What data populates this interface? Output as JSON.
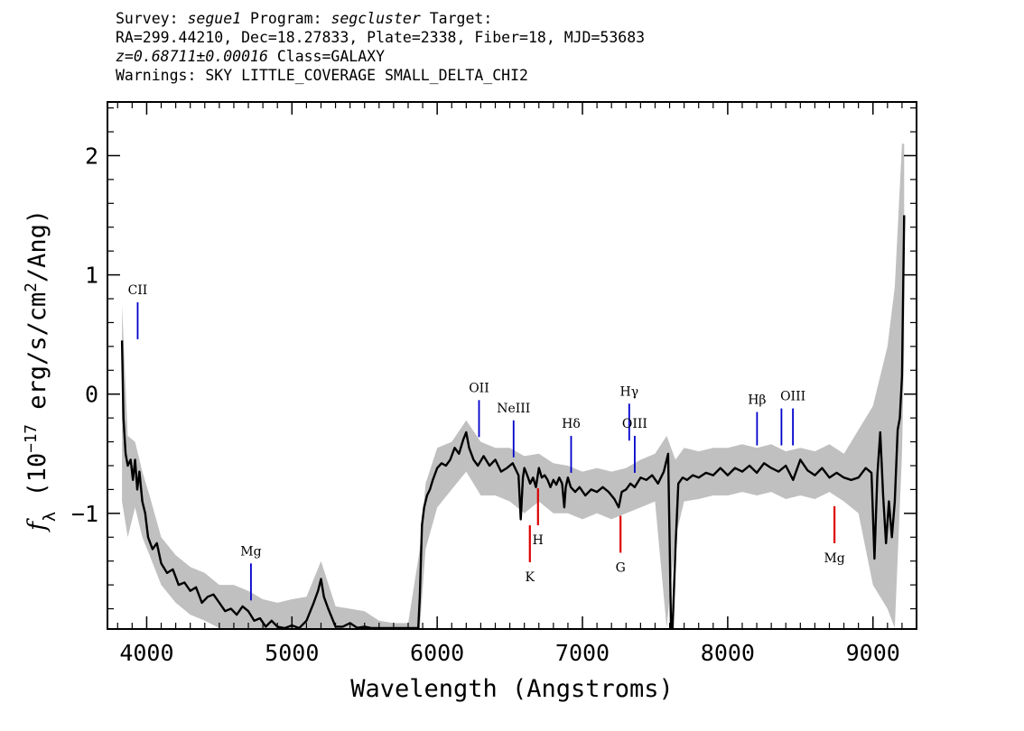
{
  "header": {
    "line1": {
      "survey_label": "Survey: ",
      "survey": "segue1",
      "program_label": " Program: ",
      "program": "segcluster",
      "target_label": " Target:"
    },
    "line2": "RA=299.44210, Dec=18.27833, Plate=2338, Fiber=18, MJD=53683",
    "line3": {
      "redshift": "z=0.68711±0.00016",
      "class": " Class=GALAXY"
    },
    "line4": "Warnings: SKY LITTLE_COVERAGE SMALL_DELTA_CHI2"
  },
  "chart_data": {
    "type": "line",
    "xlabel": "Wavelength (Angstroms)",
    "ylabel_html": "f<tspan baseline-shift='sub' font-size='70%'>λ</tspan> (10<tspan baseline-shift='super' font-size='65%'>−17</tspan> erg/s/cm<tspan baseline-shift='super' font-size='65%'>2</tspan>/Ang)",
    "xlim": [
      3730,
      9300
    ],
    "ylim": [
      -1.97,
      2.45
    ],
    "xticks": [
      4000,
      5000,
      6000,
      7000,
      8000,
      9000
    ],
    "yticks": [
      -1,
      0,
      1,
      2
    ],
    "ytick_labels": [
      "−1",
      "0",
      "1",
      "2"
    ],
    "series": [
      {
        "role": "flux",
        "color": "#000000",
        "x": [
          3830,
          3840,
          3855,
          3870,
          3890,
          3905,
          3920,
          3935,
          3950,
          3970,
          3990,
          4010,
          4040,
          4070,
          4100,
          4140,
          4180,
          4220,
          4260,
          4300,
          4340,
          4380,
          4420,
          4460,
          4500,
          4540,
          4580,
          4620,
          4660,
          4700,
          4740,
          4780,
          4820,
          4860,
          4900,
          4950,
          5000,
          5050,
          5100,
          5150,
          5180,
          5200,
          5220,
          5250,
          5300,
          5350,
          5400,
          5450,
          5500,
          5550,
          5600,
          5650,
          5700,
          5750,
          5800,
          5850,
          5870,
          5880,
          5895,
          5910,
          5930,
          5950,
          5970,
          6000,
          6030,
          6060,
          6090,
          6120,
          6150,
          6180,
          6200,
          6220,
          6250,
          6280,
          6320,
          6360,
          6400,
          6440,
          6480,
          6520,
          6560,
          6575,
          6590,
          6600,
          6620,
          6640,
          6660,
          6680,
          6700,
          6720,
          6740,
          6760,
          6780,
          6800,
          6820,
          6840,
          6860,
          6875,
          6885,
          6900,
          6920,
          6950,
          6980,
          7020,
          7060,
          7100,
          7140,
          7180,
          7220,
          7250,
          7270,
          7300,
          7330,
          7360,
          7400,
          7440,
          7480,
          7520,
          7560,
          7590,
          7600,
          7610,
          7620,
          7640,
          7660,
          7690,
          7720,
          7760,
          7800,
          7850,
          7900,
          7950,
          8000,
          8050,
          8100,
          8150,
          8200,
          8250,
          8300,
          8350,
          8400,
          8450,
          8500,
          8550,
          8600,
          8650,
          8700,
          8750,
          8800,
          8850,
          8900,
          8950,
          8990,
          9010,
          9030,
          9050,
          9070,
          9090,
          9110,
          9130,
          9150,
          9170,
          9185,
          9200,
          9215
        ],
        "y": [
          0.45,
          -0.2,
          -0.5,
          -0.6,
          -0.55,
          -0.72,
          -0.55,
          -0.8,
          -0.65,
          -0.9,
          -1.0,
          -1.2,
          -1.3,
          -1.25,
          -1.42,
          -1.5,
          -1.47,
          -1.6,
          -1.58,
          -1.65,
          -1.62,
          -1.75,
          -1.7,
          -1.68,
          -1.75,
          -1.82,
          -1.8,
          -1.85,
          -1.78,
          -1.82,
          -1.9,
          -1.88,
          -1.95,
          -1.9,
          -1.95,
          -1.98,
          -1.94,
          -1.97,
          -1.9,
          -1.75,
          -1.65,
          -1.55,
          -1.7,
          -1.8,
          -1.95,
          -1.95,
          -1.92,
          -1.96,
          -1.95,
          -1.97,
          -1.97,
          -1.97,
          -1.97,
          -1.97,
          -1.97,
          -1.97,
          -1.97,
          -1.7,
          -1.1,
          -0.95,
          -0.85,
          -0.8,
          -0.72,
          -0.62,
          -0.58,
          -0.6,
          -0.55,
          -0.45,
          -0.5,
          -0.38,
          -0.32,
          -0.45,
          -0.55,
          -0.6,
          -0.52,
          -0.6,
          -0.55,
          -0.65,
          -0.62,
          -0.58,
          -0.68,
          -1.05,
          -0.7,
          -0.62,
          -0.68,
          -0.75,
          -0.7,
          -0.78,
          -0.62,
          -0.7,
          -0.68,
          -0.72,
          -0.78,
          -0.72,
          -0.76,
          -0.7,
          -0.75,
          -0.95,
          -0.78,
          -0.7,
          -0.78,
          -0.82,
          -0.78,
          -0.85,
          -0.8,
          -0.82,
          -0.78,
          -0.82,
          -0.88,
          -0.95,
          -0.82,
          -0.8,
          -0.75,
          -0.78,
          -0.7,
          -0.72,
          -0.68,
          -0.75,
          -0.65,
          -0.5,
          -1.2,
          -1.97,
          -1.97,
          -1.3,
          -0.75,
          -0.7,
          -0.72,
          -0.68,
          -0.7,
          -0.66,
          -0.68,
          -0.62,
          -0.68,
          -0.62,
          -0.65,
          -0.6,
          -0.66,
          -0.58,
          -0.62,
          -0.65,
          -0.6,
          -0.72,
          -0.55,
          -0.64,
          -0.68,
          -0.62,
          -0.7,
          -0.66,
          -0.7,
          -0.72,
          -0.7,
          -0.62,
          -0.66,
          -1.38,
          -0.68,
          -0.32,
          -0.85,
          -1.25,
          -0.9,
          -1.2,
          -0.9,
          -0.3,
          -0.2,
          0.15,
          1.5
        ]
      },
      {
        "role": "noise-upper",
        "color": "#c0c0c0",
        "x": [
          3830,
          3870,
          3920,
          3970,
          4020,
          4100,
          4200,
          4300,
          4400,
          4500,
          4600,
          4700,
          4800,
          4900,
          5000,
          5100,
          5200,
          5300,
          5400,
          5500,
          5600,
          5700,
          5800,
          5880,
          5920,
          6000,
          6100,
          6200,
          6300,
          6400,
          6500,
          6600,
          6700,
          6800,
          6900,
          7000,
          7100,
          7200,
          7300,
          7400,
          7500,
          7580,
          7640,
          7700,
          7800,
          7900,
          8000,
          8100,
          8200,
          8300,
          8400,
          8500,
          8600,
          8700,
          8800,
          8900,
          9000,
          9100,
          9150,
          9200,
          9215
        ],
        "y": [
          0.75,
          -0.35,
          -0.4,
          -0.65,
          -0.85,
          -1.2,
          -1.35,
          -1.45,
          -1.5,
          -1.6,
          -1.6,
          -1.65,
          -1.72,
          -1.75,
          -1.72,
          -1.7,
          -1.4,
          -1.78,
          -1.8,
          -1.82,
          -1.9,
          -1.92,
          -1.92,
          -1.3,
          -0.75,
          -0.45,
          -0.4,
          -0.22,
          -0.4,
          -0.45,
          -0.45,
          -0.52,
          -0.5,
          -0.58,
          -0.6,
          -0.65,
          -0.62,
          -0.65,
          -0.62,
          -0.55,
          -0.5,
          -0.35,
          -0.55,
          -0.45,
          -0.48,
          -0.45,
          -0.45,
          -0.42,
          -0.45,
          -0.42,
          -0.48,
          -0.45,
          -0.48,
          -0.42,
          -0.5,
          -0.3,
          -0.1,
          0.4,
          0.9,
          2.1,
          2.1
        ]
      },
      {
        "role": "noise-lower",
        "color": "#c0c0c0",
        "x": [
          3830,
          3870,
          3920,
          3970,
          4020,
          4100,
          4200,
          4300,
          4400,
          4500,
          4600,
          4700,
          4800,
          4900,
          5000,
          5100,
          5200,
          5300,
          5400,
          5500,
          5600,
          5700,
          5800,
          5880,
          5920,
          6000,
          6100,
          6200,
          6300,
          6400,
          6500,
          6600,
          6700,
          6800,
          6900,
          7000,
          7100,
          7200,
          7300,
          7400,
          7500,
          7580,
          7640,
          7700,
          7800,
          7900,
          8000,
          8100,
          8200,
          8300,
          8400,
          8500,
          8600,
          8700,
          8800,
          8900,
          9000,
          9100,
          9150,
          9200,
          9215
        ],
        "y": [
          -0.9,
          -1.2,
          -0.95,
          -1.2,
          -1.35,
          -1.6,
          -1.75,
          -1.85,
          -1.9,
          -1.97,
          -1.97,
          -1.97,
          -1.97,
          -1.97,
          -1.97,
          -1.97,
          -1.97,
          -1.97,
          -1.97,
          -1.97,
          -1.97,
          -1.97,
          -1.97,
          -1.97,
          -1.3,
          -0.95,
          -0.8,
          -0.65,
          -0.85,
          -0.85,
          -0.9,
          -1.0,
          -0.9,
          -1.0,
          -1.0,
          -1.05,
          -1.0,
          -1.05,
          -1.0,
          -0.95,
          -0.9,
          -1.97,
          -1.2,
          -0.9,
          -0.88,
          -0.85,
          -0.85,
          -0.82,
          -0.85,
          -0.82,
          -0.88,
          -0.85,
          -0.88,
          -0.82,
          -0.9,
          -1.0,
          -1.6,
          -1.8,
          -1.97,
          -0.5,
          0.4
        ]
      }
    ],
    "annotations": [
      {
        "label": "CII",
        "x": 3938,
        "y_top": 0.77,
        "y_bottom": 0.46,
        "color": "#0000cc",
        "text_pos": "above"
      },
      {
        "label": "Mg",
        "x": 4718,
        "y_top": -1.42,
        "y_bottom": -1.73,
        "color": "#0000cc",
        "text_pos": "above"
      },
      {
        "label": "OII",
        "x": 6288,
        "y_top": -0.05,
        "y_bottom": -0.36,
        "color": "#0000cc",
        "text_pos": "above"
      },
      {
        "label": "NeIII",
        "x": 6526,
        "y_top": -0.22,
        "y_bottom": -0.53,
        "color": "#0000cc",
        "text_pos": "above"
      },
      {
        "label": "Hδ",
        "x": 6922,
        "y_top": -0.35,
        "y_bottom": -0.66,
        "color": "#0000cc",
        "text_pos": "above"
      },
      {
        "label": "Hγ",
        "x": 7322,
        "y_top": -0.08,
        "y_bottom": -0.39,
        "color": "#0000cc",
        "text_pos": "above"
      },
      {
        "label": "OIII",
        "x": 7360,
        "y_top": -0.35,
        "y_bottom": -0.66,
        "color": "#0000cc",
        "text_pos": "above"
      },
      {
        "label": "Hβ",
        "x": 8202,
        "y_top": -0.15,
        "y_bottom": -0.43,
        "color": "#0000cc",
        "text_pos": "above"
      },
      {
        "label": "",
        "x": 8370,
        "y_top": -0.12,
        "y_bottom": -0.43,
        "color": "#0000cc",
        "text_pos": "above"
      },
      {
        "label": "OIII",
        "x": 8449,
        "y_top": -0.12,
        "y_bottom": -0.43,
        "color": "#0000cc",
        "text_pos": "above"
      },
      {
        "label": "K",
        "x": 6638,
        "y_top": -1.1,
        "y_bottom": -1.41,
        "color": "#dd0000",
        "text_pos": "below"
      },
      {
        "label": "H",
        "x": 6694,
        "y_top": -0.79,
        "y_bottom": -1.1,
        "color": "#dd0000",
        "text_pos": "below"
      },
      {
        "label": "G",
        "x": 7262,
        "y_top": -1.02,
        "y_bottom": -1.33,
        "color": "#dd0000",
        "text_pos": "below"
      },
      {
        "label": "Mg",
        "x": 8735,
        "y_top": -0.94,
        "y_bottom": -1.25,
        "color": "#dd0000",
        "text_pos": "below"
      }
    ]
  }
}
